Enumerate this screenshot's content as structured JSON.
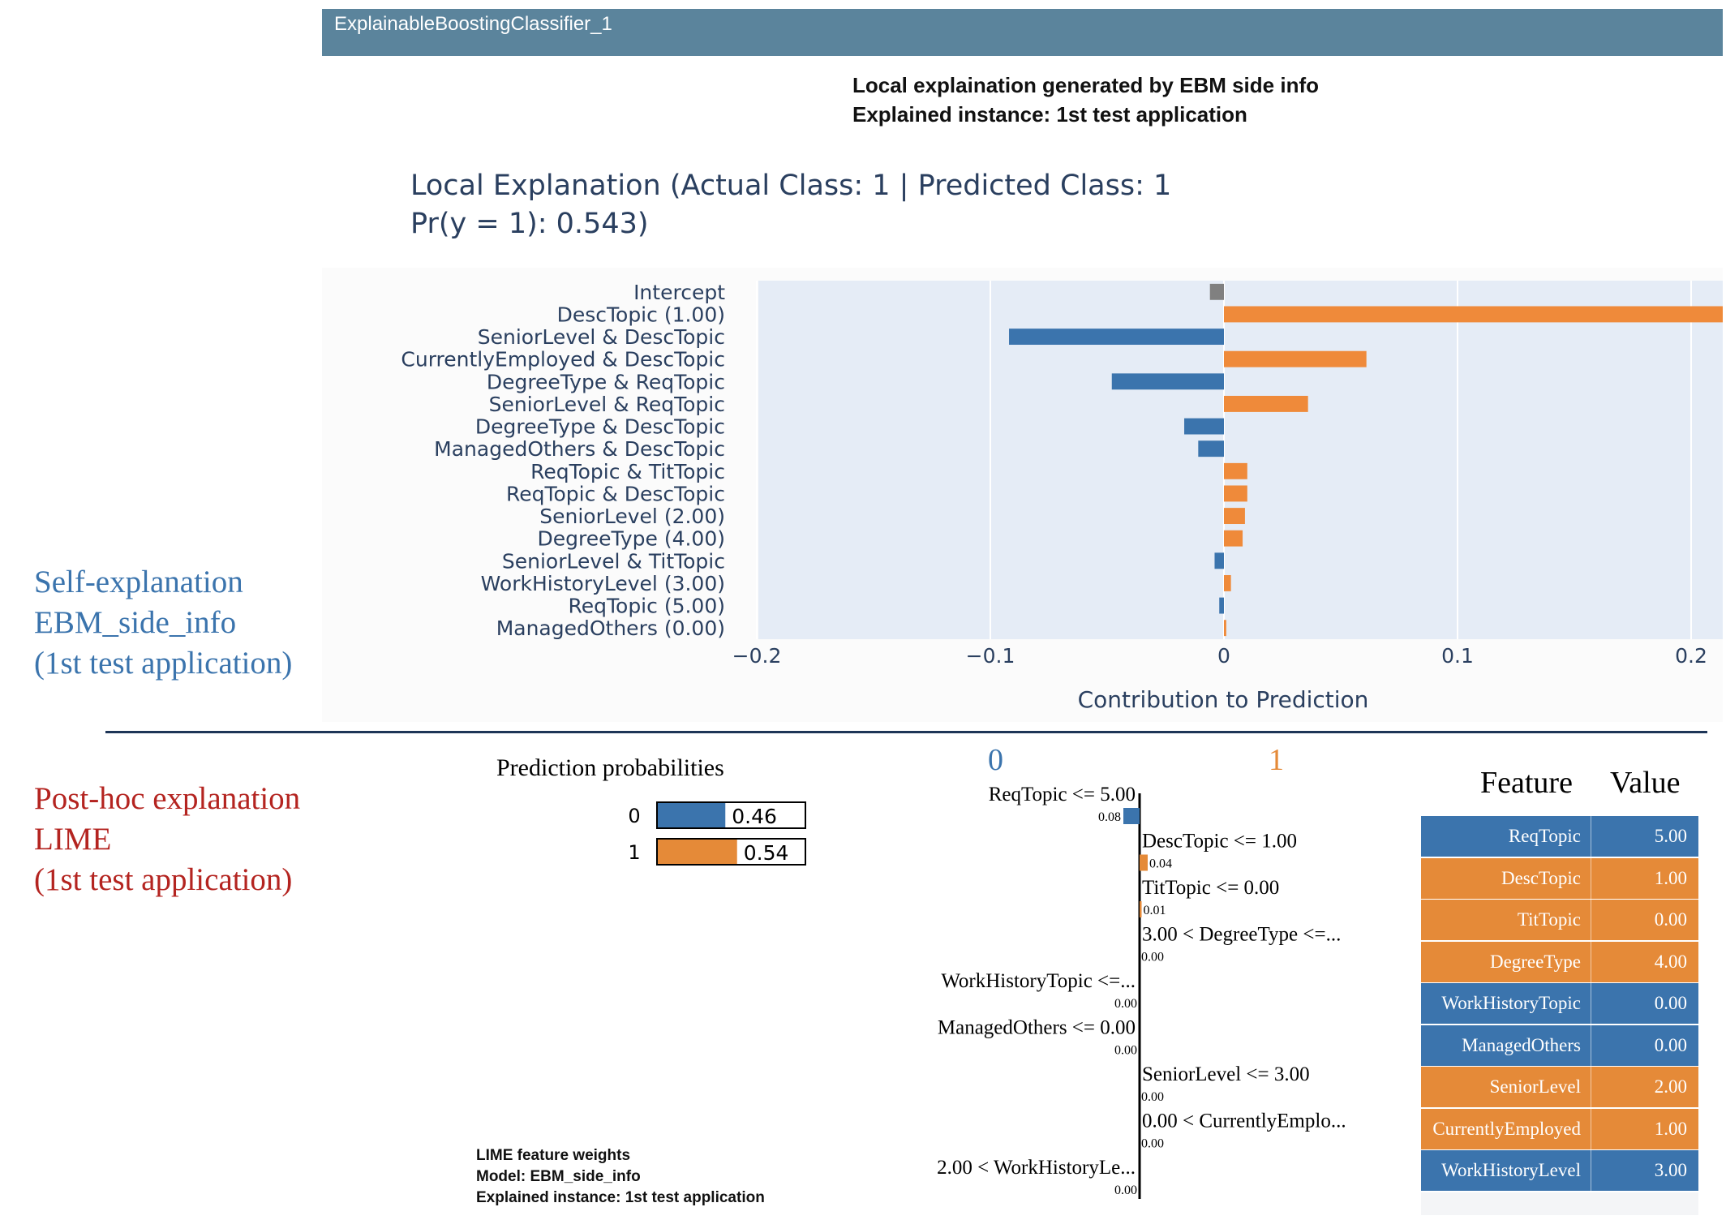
{
  "ebm_header": {
    "label": "ExplainableBoostingClassifier_1"
  },
  "ebm_caption": {
    "line1": "Local explaination generated by EBM side info",
    "line2": "Explained instance: 1st test application"
  },
  "ebm_title": {
    "line1": "Local Explanation (Actual Class: 1 | Predicted Class: 1",
    "line2": "Pr(y = 1): 0.543)"
  },
  "self_label": {
    "line1": "Self-explanation",
    "line2": "EBM_side_info",
    "line3": "(1st test application)",
    "color": "#3b74ad"
  },
  "posthoc_label": {
    "line1": "Post-hoc explanation",
    "line2": "LIME",
    "line3": "(1st test application)",
    "color": "#b42420"
  },
  "colors": {
    "positive": "#ef8a3a",
    "negative": "#3b74ad",
    "intercept": "#808080",
    "plot_bg": "#e5ecf6",
    "lime_pos": "#e58a38",
    "lime_neg": "#3b74ad"
  },
  "chart_data": [
    {
      "type": "bar",
      "orientation": "horizontal",
      "title": "Local Explanation (Actual Class: 1 | Predicted Class: 1 Pr(y = 1): 0.543)",
      "xlabel": "Contribution to Prediction",
      "xlim": [
        -0.2,
        0.2
      ],
      "xticks": [
        -0.2,
        -0.1,
        0,
        0.1,
        0.2
      ],
      "xtick_labels": [
        "−0.2",
        "−0.1",
        "0",
        "0.1",
        "0.2"
      ],
      "grid": true,
      "categories": [
        "Intercept",
        "DescTopic (1.00)",
        "SeniorLevel & DescTopic",
        "CurrentlyEmployed & DescTopic",
        "DegreeType & ReqTopic",
        "SeniorLevel & ReqTopic",
        "DegreeType & DescTopic",
        "ManagedOthers & DescTopic",
        "ReqTopic & TitTopic",
        "ReqTopic & DescTopic",
        "SeniorLevel (2.00)",
        "DegreeType (4.00)",
        "SeniorLevel & TitTopic",
        "WorkHistoryLevel (3.00)",
        "ReqTopic (5.00)",
        "ManagedOthers (0.00)"
      ],
      "values": [
        -0.006,
        0.214,
        -0.092,
        0.061,
        -0.048,
        0.036,
        -0.017,
        -0.011,
        0.01,
        0.01,
        0.009,
        0.008,
        -0.004,
        0.003,
        -0.002,
        0.001
      ]
    },
    {
      "type": "bar",
      "orientation": "horizontal",
      "title": "Prediction probabilities",
      "categories": [
        "0",
        "1"
      ],
      "values": [
        0.46,
        0.54
      ],
      "value_labels": [
        "0.46",
        "0.54"
      ]
    },
    {
      "type": "bar",
      "orientation": "horizontal",
      "title": "LIME feature weights",
      "classes": [
        "0",
        "1"
      ],
      "features": [
        {
          "label": "ReqTopic <= 5.00",
          "weight": "0.08",
          "value": 0.08,
          "side": "0"
        },
        {
          "label": "DescTopic <= 1.00",
          "weight": "0.04",
          "value": 0.04,
          "side": "1"
        },
        {
          "label": "TitTopic <= 0.00",
          "weight": "0.01",
          "value": 0.01,
          "side": "1"
        },
        {
          "label": "3.00 < DegreeType <=...",
          "weight": "0.00",
          "value": 0.0,
          "side": "1"
        },
        {
          "label": "WorkHistoryTopic <=...",
          "weight": "0.00",
          "value": 0.0,
          "side": "0"
        },
        {
          "label": "ManagedOthers <= 0.00",
          "weight": "0.00",
          "value": 0.0,
          "side": "0"
        },
        {
          "label": "SeniorLevel <= 3.00",
          "weight": "0.00",
          "value": 0.0,
          "side": "1"
        },
        {
          "label": "0.00 < CurrentlyEmplo...",
          "weight": "0.00",
          "value": 0.0,
          "side": "1"
        },
        {
          "label": "2.00 < WorkHistoryLe...",
          "weight": "0.00",
          "value": 0.0,
          "side": "0"
        }
      ]
    },
    {
      "type": "table",
      "columns": [
        "Feature",
        "Value"
      ],
      "rows": [
        {
          "feature": "ReqTopic",
          "value": "5.00",
          "color": "#3b74ad"
        },
        {
          "feature": "DescTopic",
          "value": "1.00",
          "color": "#e58a38"
        },
        {
          "feature": "TitTopic",
          "value": "0.00",
          "color": "#e58a38"
        },
        {
          "feature": "DegreeType",
          "value": "4.00",
          "color": "#e58a38"
        },
        {
          "feature": "WorkHistoryTopic",
          "value": "0.00",
          "color": "#3b74ad"
        },
        {
          "feature": "ManagedOthers",
          "value": "0.00",
          "color": "#3b74ad"
        },
        {
          "feature": "SeniorLevel",
          "value": "2.00",
          "color": "#e58a38"
        },
        {
          "feature": "CurrentlyEmployed",
          "value": "1.00",
          "color": "#e58a38"
        },
        {
          "feature": "WorkHistoryLevel",
          "value": "3.00",
          "color": "#3b74ad"
        }
      ]
    }
  ],
  "lime_caption": {
    "line1": "LIME feature weights",
    "line2": "Model: EBM_side_info",
    "line3": "Explained instance: 1st test application"
  }
}
